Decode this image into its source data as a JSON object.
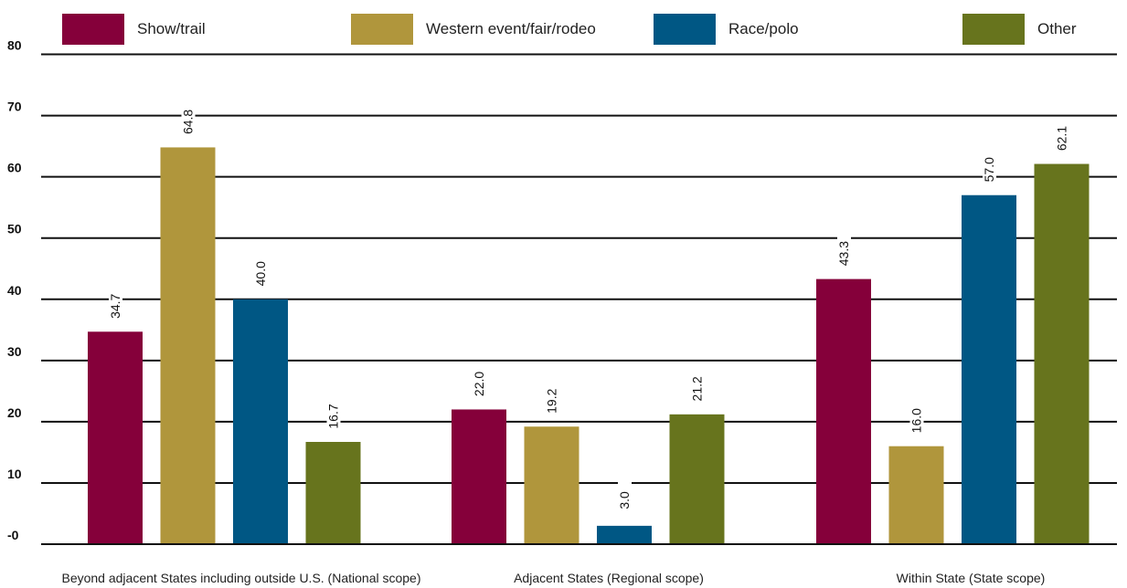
{
  "chart_data": {
    "type": "bar",
    "categories": [
      "Beyond adjacent States including outside U.S. (National scope)",
      "Adjacent States (Regional scope)",
      "Within State (State scope)"
    ],
    "series": [
      {
        "name": "Show/trail",
        "color": "#85003a",
        "values": [
          34.7,
          22.0,
          43.3
        ],
        "labels": [
          "34.7",
          "22.0",
          "43.3"
        ]
      },
      {
        "name": "Western event/fair/rodeo",
        "color": "#b0963c",
        "values": [
          64.8,
          19.2,
          16.0
        ],
        "labels": [
          "64.8",
          "19.2",
          "16.0"
        ]
      },
      {
        "name": "Race/polo",
        "color": "#005784",
        "values": [
          40.0,
          3.0,
          57.0
        ],
        "labels": [
          "40.0",
          "3.0",
          "57.0"
        ]
      },
      {
        "name": "Other",
        "color": "#67741d",
        "values": [
          16.7,
          21.2,
          62.1
        ],
        "labels": [
          "16.7",
          "21.2",
          "62.1"
        ]
      }
    ],
    "yticks": [
      "-0",
      "10",
      "20",
      "30",
      "40",
      "50",
      "60",
      "70",
      "80"
    ],
    "ylim": [
      0,
      80
    ],
    "grid": true,
    "legend_position": "top"
  }
}
